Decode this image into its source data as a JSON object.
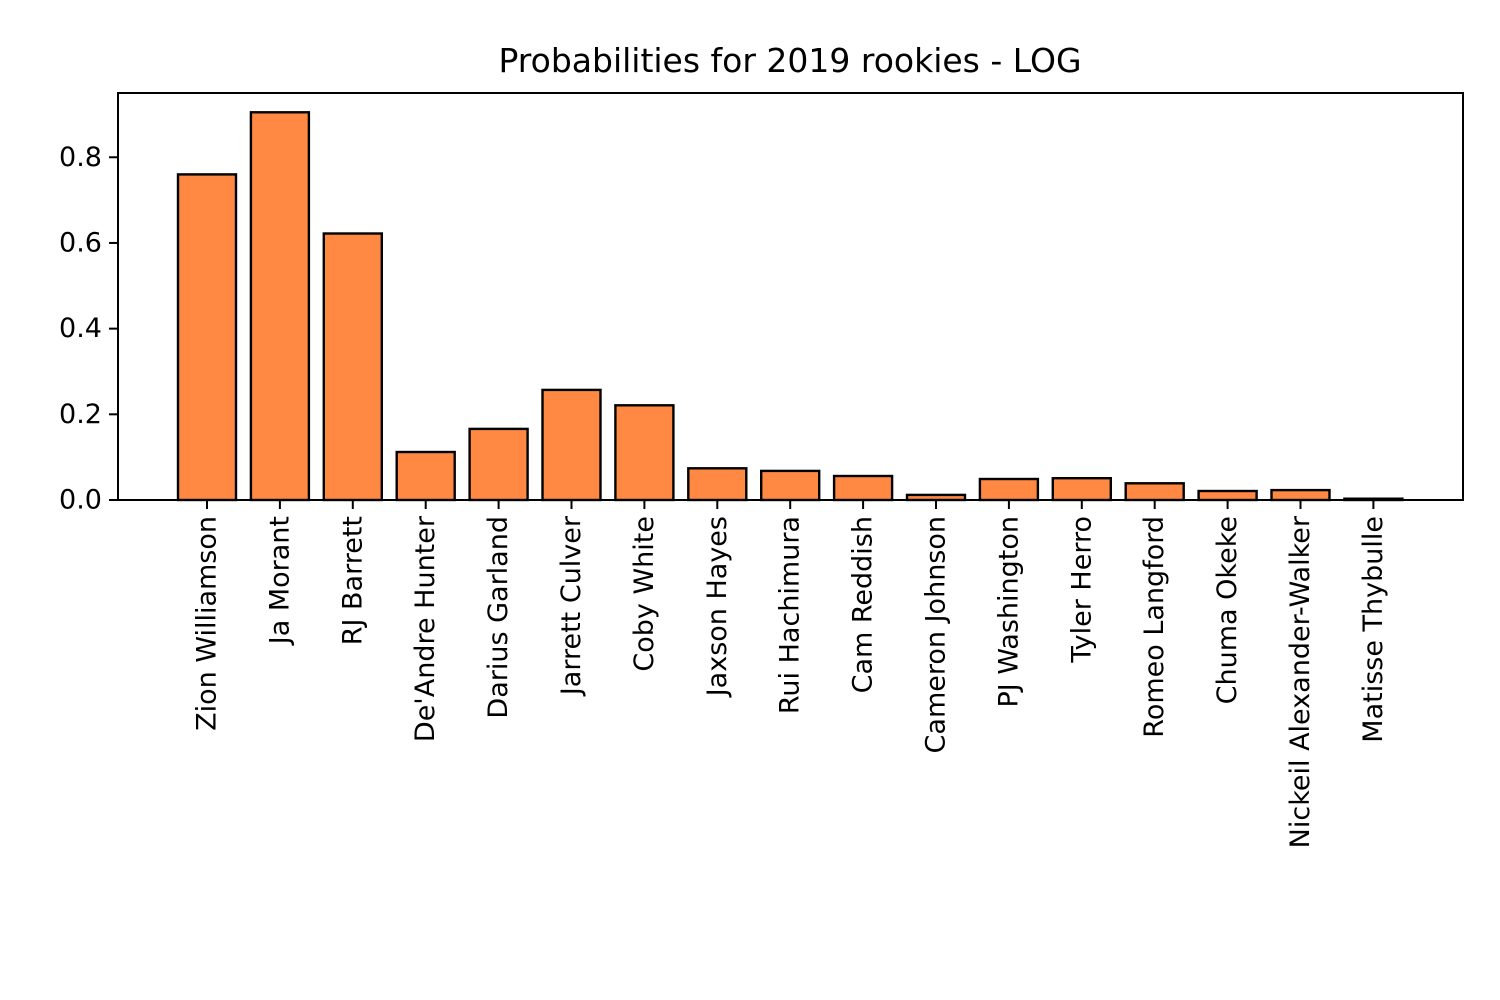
{
  "chart_data": {
    "type": "bar",
    "title": "Probabilities for 2019 rookies - LOG",
    "xlabel": "",
    "ylabel": "",
    "categories": [
      "Zion Williamson",
      "Ja Morant",
      "RJ Barrett",
      "De'Andre Hunter",
      "Darius Garland",
      "Jarrett Culver",
      "Coby White",
      "Jaxson Hayes",
      "Rui Hachimura",
      "Cam Reddish",
      "Cameron Johnson",
      "PJ Washington",
      "Tyler Herro",
      "Romeo Langford",
      "Chuma Okeke",
      "Nickeil Alexander-Walker",
      "Matisse Thybulle"
    ],
    "values": [
      0.76,
      0.905,
      0.622,
      0.112,
      0.166,
      0.257,
      0.221,
      0.074,
      0.068,
      0.056,
      0.012,
      0.049,
      0.051,
      0.039,
      0.021,
      0.023,
      0.003
    ],
    "ylim": [
      0,
      0.95
    ],
    "yticks": [
      0.0,
      0.2,
      0.4,
      0.6,
      0.8
    ],
    "ytick_labels": [
      "0.0",
      "0.2",
      "0.4",
      "0.6",
      "0.8"
    ],
    "bar_color": "#ff8843",
    "grid": false,
    "legend": "none"
  }
}
